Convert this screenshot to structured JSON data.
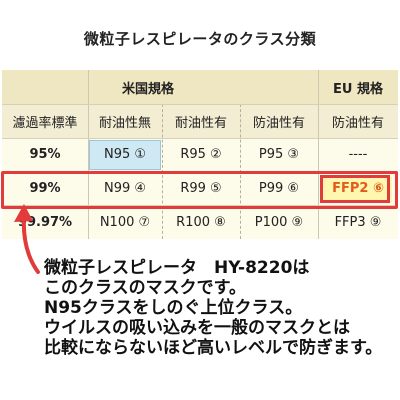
{
  "title": "微粒子レスピレータのクラス分類",
  "table": {
    "group_us": "米国規格",
    "group_eu": "EU 規格",
    "headers": [
      "濾過率標準",
      "耐油性無",
      "耐油性有",
      "防油性有",
      "防油性有"
    ],
    "rows": [
      [
        "95%",
        "N95 ①",
        "R95 ②",
        "P95 ③",
        "----"
      ],
      [
        "99%",
        "N99 ④",
        "R99 ⑤",
        "P99 ⑥",
        "FFP2 ⑥"
      ],
      [
        "99.97%",
        "N100 ⑦",
        "R100 ⑧",
        "P100 ⑨",
        "FFP3 ⑨"
      ]
    ]
  },
  "note": [
    "微粒子レスピレータ　HY-8220は",
    "このクラスのマスクです。",
    "N95クラスをしのぐ上位クラス。",
    "ウイルスの吸い込みを一般のマスクとは",
    "比較にならないほど高いレベルで防ぎます。"
  ],
  "colors": {
    "highlight": "#e23b3b",
    "n95_fill": "#cfe9f4",
    "ffp2_fill": "#fff7b0",
    "ffp2_text": "#e25b1a",
    "header_band": "#efe6c2"
  }
}
